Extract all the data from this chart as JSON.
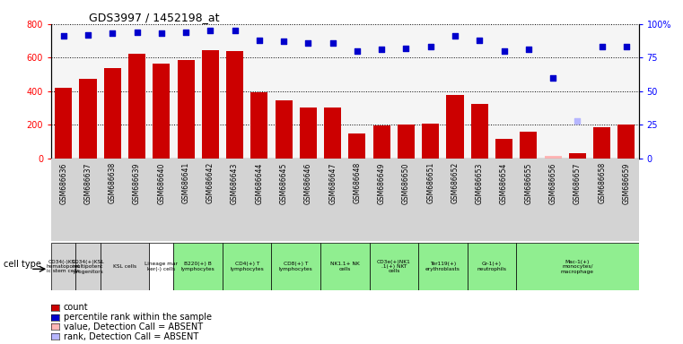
{
  "title": "GDS3997 / 1452198_at",
  "gsm_labels": [
    "GSM686636",
    "GSM686637",
    "GSM686638",
    "GSM686639",
    "GSM686640",
    "GSM686641",
    "GSM686642",
    "GSM686643",
    "GSM686644",
    "GSM686645",
    "GSM686646",
    "GSM686647",
    "GSM686648",
    "GSM686649",
    "GSM686650",
    "GSM686651",
    "GSM686652",
    "GSM686653",
    "GSM686654",
    "GSM686655",
    "GSM686656",
    "GSM686657",
    "GSM686658",
    "GSM686659"
  ],
  "bar_values": [
    420,
    475,
    540,
    625,
    565,
    585,
    645,
    640,
    395,
    345,
    305,
    300,
    150,
    195,
    200,
    205,
    375,
    325,
    115,
    158,
    15,
    28,
    185,
    200
  ],
  "percentile_values": [
    91,
    92,
    93,
    94,
    93,
    94,
    95,
    95,
    88,
    87,
    86,
    86,
    80,
    81,
    82,
    83,
    91,
    88,
    80,
    81,
    60,
    28,
    83,
    83
  ],
  "absent_bar_idx": [
    20
  ],
  "absent_rank_idx": [
    21
  ],
  "bar_color": "#cc0000",
  "percentile_color": "#0000cc",
  "absent_bar_color": "#ffb6b6",
  "absent_rank_color": "#b6b6ff",
  "ylim_left": [
    0,
    800
  ],
  "ylim_right": [
    0,
    100
  ],
  "yticks_left": [
    0,
    200,
    400,
    600,
    800
  ],
  "yticks_right": [
    0,
    25,
    50,
    75,
    100
  ],
  "groups": [
    {
      "label": "CD34(-)KSL\nhematopoiet\nic stem cells",
      "start": 0,
      "end": 0,
      "color": "#d3d3d3"
    },
    {
      "label": "CD34(+)KSL\nmultipotent\nprogenitors",
      "start": 1,
      "end": 1,
      "color": "#d3d3d3"
    },
    {
      "label": "KSL cells",
      "start": 2,
      "end": 3,
      "color": "#d3d3d3"
    },
    {
      "label": "Lineage mar\nker(-) cells",
      "start": 4,
      "end": 4,
      "color": "#ffffff"
    },
    {
      "label": "B220(+) B\nlymphocytes",
      "start": 5,
      "end": 6,
      "color": "#90ee90"
    },
    {
      "label": "CD4(+) T\nlymphocytes",
      "start": 7,
      "end": 8,
      "color": "#90ee90"
    },
    {
      "label": "CD8(+) T\nlymphocytes",
      "start": 9,
      "end": 10,
      "color": "#90ee90"
    },
    {
      "label": "NK1.1+ NK\ncells",
      "start": 11,
      "end": 12,
      "color": "#90ee90"
    },
    {
      "label": "CD3e(+)NK1\n.1(+) NKT\ncells",
      "start": 13,
      "end": 14,
      "color": "#90ee90"
    },
    {
      "label": "Ter119(+)\nerythroblasts",
      "start": 15,
      "end": 16,
      "color": "#90ee90"
    },
    {
      "label": "Gr-1(+)\nneutrophils",
      "start": 17,
      "end": 18,
      "color": "#90ee90"
    },
    {
      "label": "Mac-1(+)\nmonocytes/\nmacrophage",
      "start": 19,
      "end": 23,
      "color": "#90ee90"
    }
  ]
}
